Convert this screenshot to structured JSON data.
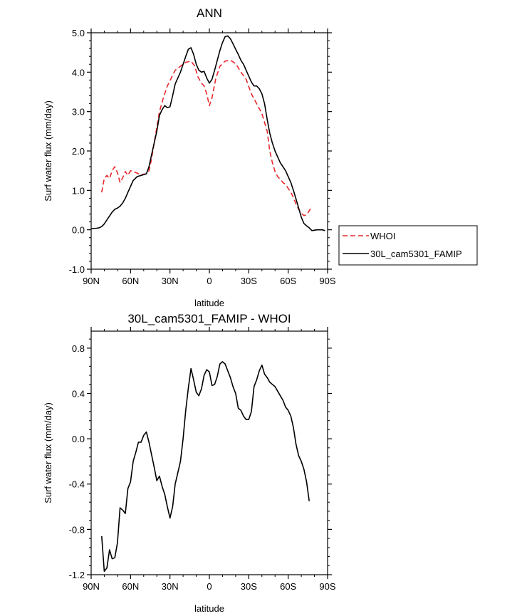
{
  "chart_data": [
    {
      "type": "line",
      "title": "ANN",
      "xlabel": "latitude",
      "ylabel": "Surf water flux (mm/day)",
      "xlim": [
        90,
        -90
      ],
      "ylim": [
        -1.0,
        5.0
      ],
      "x_ticks": [
        90,
        60,
        30,
        0,
        -30,
        -60,
        -90
      ],
      "x_tick_labels": [
        "90N",
        "60N",
        "30N",
        "0",
        "30S",
        "60S",
        "90S"
      ],
      "y_ticks": [
        -1.0,
        0.0,
        1.0,
        2.0,
        3.0,
        4.0,
        5.0
      ],
      "y_tick_labels": [
        "-1.0",
        "0.0",
        "1.0",
        "2.0",
        "3.0",
        "4.0",
        "5.0"
      ],
      "legend": "outside-right",
      "series": [
        {
          "name": "WHOI",
          "color": "#e8282d",
          "dash": "dashed",
          "points": [
            [
              82,
              0.95
            ],
            [
              80,
              1.3
            ],
            [
              78,
              1.38
            ],
            [
              76,
              1.3
            ],
            [
              74,
              1.5
            ],
            [
              72,
              1.6
            ],
            [
              70,
              1.45
            ],
            [
              68,
              1.2
            ],
            [
              66,
              1.32
            ],
            [
              64,
              1.48
            ],
            [
              62,
              1.38
            ],
            [
              60,
              1.5
            ],
            [
              56,
              1.45
            ],
            [
              52,
              1.4
            ],
            [
              48,
              1.42
            ],
            [
              46,
              1.5
            ],
            [
              44,
              1.8
            ],
            [
              42,
              2.2
            ],
            [
              40,
              2.6
            ],
            [
              38,
              3.0
            ],
            [
              35,
              3.35
            ],
            [
              32,
              3.65
            ],
            [
              29,
              3.85
            ],
            [
              26,
              4.05
            ],
            [
              22,
              4.15
            ],
            [
              18,
              4.25
            ],
            [
              14,
              4.28
            ],
            [
              11,
              4.15
            ],
            [
              9,
              3.9
            ],
            [
              6,
              3.72
            ],
            [
              4,
              3.65
            ],
            [
              2,
              3.45
            ],
            [
              0,
              3.15
            ],
            [
              -2,
              3.35
            ],
            [
              -5,
              3.85
            ],
            [
              -8,
              4.15
            ],
            [
              -12,
              4.28
            ],
            [
              -16,
              4.3
            ],
            [
              -20,
              4.22
            ],
            [
              -24,
              4.0
            ],
            [
              -28,
              3.82
            ],
            [
              -32,
              3.45
            ],
            [
              -36,
              3.2
            ],
            [
              -40,
              2.95
            ],
            [
              -44,
              2.5
            ],
            [
              -46,
              2.0
            ],
            [
              -48,
              1.7
            ],
            [
              -50,
              1.48
            ],
            [
              -52,
              1.35
            ],
            [
              -54,
              1.28
            ],
            [
              -56,
              1.2
            ],
            [
              -58,
              1.15
            ],
            [
              -60,
              1.05
            ],
            [
              -62,
              0.95
            ],
            [
              -64,
              0.82
            ],
            [
              -66,
              0.65
            ],
            [
              -68,
              0.52
            ],
            [
              -70,
              0.42
            ],
            [
              -72,
              0.36
            ],
            [
              -74,
              0.38
            ],
            [
              -76,
              0.48
            ],
            [
              -78,
              0.6
            ]
          ]
        },
        {
          "name": "30L_cam5301_FAMIP",
          "color": "#000000",
          "dash": "solid",
          "points": [
            [
              90,
              0.03
            ],
            [
              86,
              0.04
            ],
            [
              84,
              0.05
            ],
            [
              82,
              0.08
            ],
            [
              80,
              0.15
            ],
            [
              78,
              0.25
            ],
            [
              76,
              0.35
            ],
            [
              74,
              0.45
            ],
            [
              72,
              0.52
            ],
            [
              70,
              0.55
            ],
            [
              68,
              0.6
            ],
            [
              66,
              0.68
            ],
            [
              64,
              0.8
            ],
            [
              62,
              0.95
            ],
            [
              60,
              1.1
            ],
            [
              58,
              1.25
            ],
            [
              55,
              1.35
            ],
            [
              52,
              1.38
            ],
            [
              48,
              1.42
            ],
            [
              46,
              1.6
            ],
            [
              44,
              1.9
            ],
            [
              42,
              2.2
            ],
            [
              40,
              2.5
            ],
            [
              38,
              2.9
            ],
            [
              36,
              3.05
            ],
            [
              34,
              3.15
            ],
            [
              32,
              3.1
            ],
            [
              30,
              3.12
            ],
            [
              28,
              3.4
            ],
            [
              26,
              3.7
            ],
            [
              24,
              3.85
            ],
            [
              22,
              4.0
            ],
            [
              20,
              4.2
            ],
            [
              18,
              4.4
            ],
            [
              16,
              4.58
            ],
            [
              14,
              4.62
            ],
            [
              12,
              4.45
            ],
            [
              10,
              4.2
            ],
            [
              8,
              4.05
            ],
            [
              6,
              4.0
            ],
            [
              4,
              4.02
            ],
            [
              2,
              3.85
            ],
            [
              0,
              3.72
            ],
            [
              -2,
              3.82
            ],
            [
              -4,
              4.05
            ],
            [
              -6,
              4.3
            ],
            [
              -8,
              4.55
            ],
            [
              -10,
              4.75
            ],
            [
              -12,
              4.9
            ],
            [
              -14,
              4.92
            ],
            [
              -16,
              4.85
            ],
            [
              -18,
              4.72
            ],
            [
              -20,
              4.58
            ],
            [
              -22,
              4.45
            ],
            [
              -24,
              4.3
            ],
            [
              -26,
              4.2
            ],
            [
              -28,
              4.05
            ],
            [
              -30,
              3.9
            ],
            [
              -32,
              3.75
            ],
            [
              -34,
              3.65
            ],
            [
              -36,
              3.65
            ],
            [
              -38,
              3.58
            ],
            [
              -40,
              3.45
            ],
            [
              -42,
              3.2
            ],
            [
              -44,
              2.8
            ],
            [
              -46,
              2.45
            ],
            [
              -48,
              2.2
            ],
            [
              -50,
              2.0
            ],
            [
              -52,
              1.85
            ],
            [
              -54,
              1.7
            ],
            [
              -56,
              1.6
            ],
            [
              -58,
              1.5
            ],
            [
              -60,
              1.35
            ],
            [
              -62,
              1.2
            ],
            [
              -64,
              1.0
            ],
            [
              -66,
              0.78
            ],
            [
              -68,
              0.55
            ],
            [
              -70,
              0.32
            ],
            [
              -72,
              0.16
            ],
            [
              -74,
              0.1
            ],
            [
              -76,
              0.05
            ],
            [
              -78,
              -0.02
            ],
            [
              -82,
              0.0
            ],
            [
              -86,
              0.0
            ],
            [
              -88,
              -0.02
            ]
          ]
        }
      ]
    },
    {
      "type": "line",
      "title": "30L_cam5301_FAMIP - WHOI",
      "xlabel": "latitude",
      "ylabel": "Surf water flux (mm/day)",
      "xlim": [
        90,
        -90
      ],
      "ylim": [
        -1.2,
        0.95
      ],
      "x_ticks": [
        90,
        60,
        30,
        0,
        -30,
        -60,
        -90
      ],
      "x_tick_labels": [
        "90N",
        "60N",
        "30N",
        "0",
        "30S",
        "60S",
        "90S"
      ],
      "y_ticks": [
        -1.2,
        -0.8,
        -0.4,
        0.0,
        0.4,
        0.8
      ],
      "y_tick_labels": [
        "-1.2",
        "-0.8",
        "-0.4",
        "0.0",
        "0.4",
        "0.8"
      ],
      "series": [
        {
          "color": "#000000",
          "dash": "solid",
          "points": [
            [
              82,
              -0.86
            ],
            [
              80,
              -1.17
            ],
            [
              78,
              -1.14
            ],
            [
              76,
              -0.98
            ],
            [
              74,
              -1.06
            ],
            [
              72,
              -1.05
            ],
            [
              70,
              -0.92
            ],
            [
              68,
              -0.61
            ],
            [
              66,
              -0.63
            ],
            [
              64,
              -0.66
            ],
            [
              62,
              -0.44
            ],
            [
              60,
              -0.38
            ],
            [
              58,
              -0.2
            ],
            [
              56,
              -0.12
            ],
            [
              54,
              -0.03
            ],
            [
              52,
              -0.03
            ],
            [
              50,
              0.03
            ],
            [
              48,
              0.06
            ],
            [
              46,
              -0.03
            ],
            [
              44,
              -0.14
            ],
            [
              42,
              -0.25
            ],
            [
              40,
              -0.37
            ],
            [
              38,
              -0.33
            ],
            [
              36,
              -0.42
            ],
            [
              34,
              -0.49
            ],
            [
              32,
              -0.6
            ],
            [
              30,
              -0.7
            ],
            [
              28,
              -0.6
            ],
            [
              26,
              -0.4
            ],
            [
              24,
              -0.3
            ],
            [
              22,
              -0.2
            ],
            [
              20,
              0.0
            ],
            [
              18,
              0.25
            ],
            [
              16,
              0.45
            ],
            [
              14,
              0.62
            ],
            [
              12,
              0.52
            ],
            [
              10,
              0.41
            ],
            [
              8,
              0.38
            ],
            [
              6,
              0.44
            ],
            [
              4,
              0.56
            ],
            [
              2,
              0.61
            ],
            [
              0,
              0.59
            ],
            [
              -2,
              0.47
            ],
            [
              -4,
              0.48
            ],
            [
              -6,
              0.55
            ],
            [
              -8,
              0.66
            ],
            [
              -10,
              0.68
            ],
            [
              -12,
              0.66
            ],
            [
              -14,
              0.6
            ],
            [
              -16,
              0.54
            ],
            [
              -18,
              0.46
            ],
            [
              -20,
              0.4
            ],
            [
              -22,
              0.27
            ],
            [
              -24,
              0.25
            ],
            [
              -26,
              0.2
            ],
            [
              -28,
              0.17
            ],
            [
              -30,
              0.17
            ],
            [
              -32,
              0.24
            ],
            [
              -34,
              0.46
            ],
            [
              -36,
              0.52
            ],
            [
              -38,
              0.6
            ],
            [
              -40,
              0.65
            ],
            [
              -42,
              0.57
            ],
            [
              -44,
              0.54
            ],
            [
              -46,
              0.5
            ],
            [
              -48,
              0.48
            ],
            [
              -50,
              0.46
            ],
            [
              -52,
              0.42
            ],
            [
              -54,
              0.38
            ],
            [
              -56,
              0.34
            ],
            [
              -58,
              0.28
            ],
            [
              -60,
              0.25
            ],
            [
              -62,
              0.2
            ],
            [
              -64,
              0.1
            ],
            [
              -66,
              -0.05
            ],
            [
              -68,
              -0.15
            ],
            [
              -70,
              -0.2
            ],
            [
              -72,
              -0.27
            ],
            [
              -74,
              -0.38
            ],
            [
              -76,
              -0.55
            ]
          ]
        }
      ]
    }
  ]
}
